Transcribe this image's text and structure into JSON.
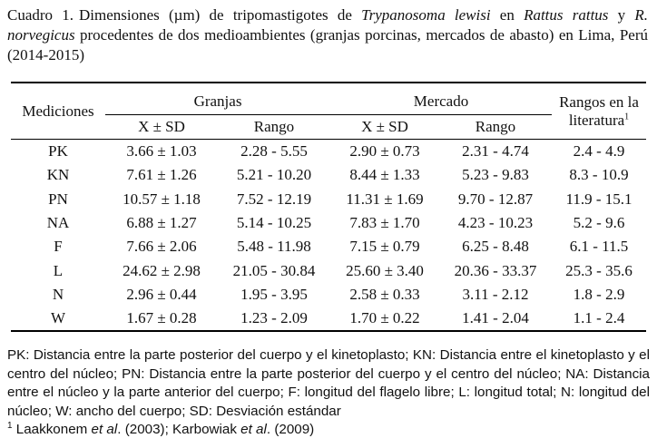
{
  "caption": {
    "number": "Cuadro 1.",
    "part1": "Dimensiones (µm) de tripomastigotes de ",
    "species1": "Trypanosoma lewisi",
    "part2": " en ",
    "species2": "Rattus rattus",
    "part3": " y ",
    "species3": "R. norvegicus",
    "part4": " procedentes de dos medioambientes (granjas porcinas, mercados de abasto) en Lima, Perú (2014-2015)"
  },
  "table": {
    "col_mediciones": "Mediciones",
    "group_granjas": "Granjas",
    "group_mercado": "Mercado",
    "col_rangos_lit": "Rangos en la literatura",
    "col_rangos_lit_sup": "1",
    "sub_mean_sd": "X ± SD",
    "sub_rango": "Rango",
    "rows": [
      {
        "label": "PK",
        "g_mean": "3.66 ± 1.03",
        "g_range": "2.28 - 5.55",
        "m_mean": "2.90 ± 0.73",
        "m_range": "2.31 - 4.74",
        "lit": "2.4 - 4.9"
      },
      {
        "label": "KN",
        "g_mean": "7.61 ± 1.26",
        "g_range": "5.21 - 10.20",
        "m_mean": "8.44 ± 1.33",
        "m_range": "5.23 - 9.83",
        "lit": "8.3 - 10.9"
      },
      {
        "label": "PN",
        "g_mean": "10.57 ± 1.18",
        "g_range": "7.52 - 12.19",
        "m_mean": "11.31 ± 1.69",
        "m_range": "9.70 - 12.87",
        "lit": "11.9 - 15.1"
      },
      {
        "label": "NA",
        "g_mean": "6.88 ± 1.27",
        "g_range": "5.14 - 10.25",
        "m_mean": "7.83 ± 1.70",
        "m_range": "4.23 - 10.23",
        "lit": "5.2 - 9.6"
      },
      {
        "label": "F",
        "g_mean": "7.66 ± 2.06",
        "g_range": "5.48 - 11.98",
        "m_mean": "7.15 ± 0.79",
        "m_range": "6.25 - 8.48",
        "lit": "6.1 - 11.5"
      },
      {
        "label": "L",
        "g_mean": "24.62 ± 2.98",
        "g_range": "21.05 - 30.84",
        "m_mean": "25.60 ± 3.40",
        "m_range": "20.36 - 33.37",
        "lit": "25.3 - 35.6"
      },
      {
        "label": "N",
        "g_mean": "2.96 ± 0.44",
        "g_range": "1.95 - 3.95",
        "m_mean": "2.58 ± 0.33",
        "m_range": "3.11 - 2.12",
        "lit": "1.8 - 2.9"
      },
      {
        "label": "W",
        "g_mean": "1.67 ± 0.28",
        "g_range": "1.23 - 2.09",
        "m_mean": "1.70 ± 0.22",
        "m_range": "1.41 - 2.04",
        "lit": "1.1 - 2.4"
      }
    ]
  },
  "footnotes": {
    "abbreviations": "PK: Distancia entre la parte posterior del cuerpo y el kinetoplasto; KN: Distancia entre el kinetoplasto y el centro del núcleo; PN: Distancia entre la parte posterior del cuerpo y el centro del núcleo; NA: Distancia entre el núcleo y la parte anterior del cuerpo; F: longitud del flagelo libre; L: longitud total; N: longitud del núcleo; W: ancho del cuerpo; SD: Desviación estándar",
    "ref_sup": "1",
    "ref_part1": " Laakkonem ",
    "ref_etal1": "et al",
    "ref_part2": ". (2003); Karbowiak ",
    "ref_etal2": "et al",
    "ref_part3": ". (2009)"
  }
}
